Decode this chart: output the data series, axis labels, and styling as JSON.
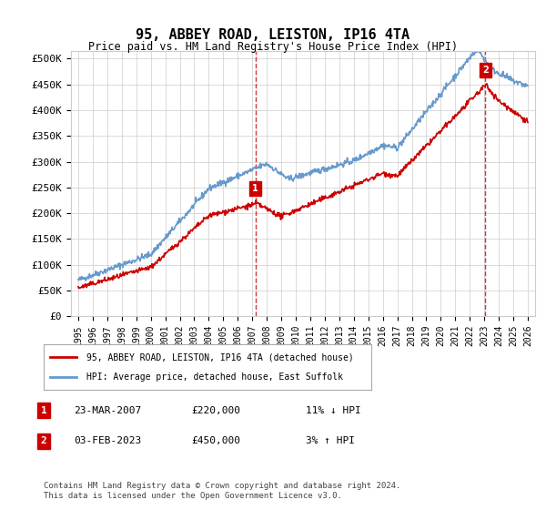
{
  "title": "95, ABBEY ROAD, LEISTON, IP16 4TA",
  "subtitle": "Price paid vs. HM Land Registry's House Price Index (HPI)",
  "ylabel_ticks": [
    "£0",
    "£50K",
    "£100K",
    "£150K",
    "£200K",
    "£250K",
    "£300K",
    "£350K",
    "£400K",
    "£450K",
    "£500K"
  ],
  "ytick_vals": [
    0,
    50000,
    100000,
    150000,
    200000,
    250000,
    300000,
    350000,
    400000,
    450000,
    500000
  ],
  "xlim": [
    1994.5,
    2026.5
  ],
  "ylim": [
    0,
    515000
  ],
  "marker1_x": 2007.22,
  "marker1_y": 220000,
  "marker2_x": 2023.08,
  "marker2_y": 450000,
  "vline1_x": 2007.22,
  "vline2_x": 2023.08,
  "legend_line1": "95, ABBEY ROAD, LEISTON, IP16 4TA (detached house)",
  "legend_line2": "HPI: Average price, detached house, East Suffolk",
  "table_row1_num": "1",
  "table_row1_date": "23-MAR-2007",
  "table_row1_price": "£220,000",
  "table_row1_hpi": "11% ↓ HPI",
  "table_row2_num": "2",
  "table_row2_date": "03-FEB-2023",
  "table_row2_price": "£450,000",
  "table_row2_hpi": "3% ↑ HPI",
  "footer": "Contains HM Land Registry data © Crown copyright and database right 2024.\nThis data is licensed under the Open Government Licence v3.0.",
  "line_color_red": "#cc0000",
  "line_color_blue": "#6699cc",
  "vline_color": "#cc0000",
  "marker_box_color": "#cc0000",
  "grid_color": "#cccccc",
  "bg_color": "#ffffff"
}
